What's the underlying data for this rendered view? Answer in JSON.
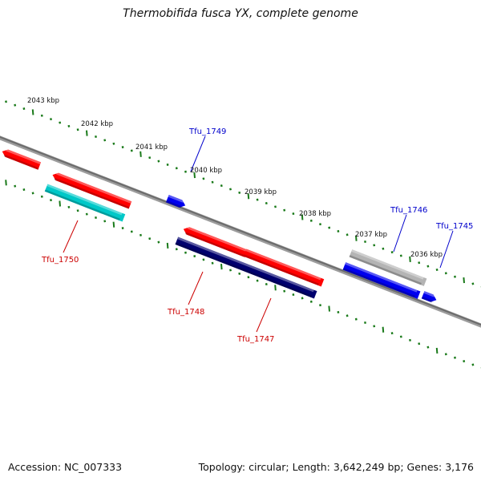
{
  "title": "Thermobifida fusca YX, complete genome",
  "footer": {
    "accession": "Accession: NC_007333",
    "summary": "Topology: circular; Length: 3,642,249 bp; Genes: 3,176"
  },
  "scale_ticks": [
    {
      "label": "2043 kbp",
      "kbp": 2043
    },
    {
      "label": "2042 kbp",
      "kbp": 2042
    },
    {
      "label": "2041 kbp",
      "kbp": 2041
    },
    {
      "label": "2040 kbp",
      "kbp": 2040
    },
    {
      "label": "2039 kbp",
      "kbp": 2039
    },
    {
      "label": "2038 kbp",
      "kbp": 2038
    },
    {
      "label": "2037 kbp",
      "kbp": 2037
    },
    {
      "label": "2036 kbp",
      "kbp": 2036
    }
  ],
  "gene_labels": [
    {
      "label": "Tfu_1749",
      "color": "#0000cc"
    },
    {
      "label": "Tfu_1746",
      "color": "#0000cc"
    },
    {
      "label": "Tfu_1745",
      "color": "#0000cc"
    },
    {
      "label": "Tfu_1750",
      "color": "#cc0000"
    },
    {
      "label": "Tfu_1748",
      "color": "#cc0000"
    },
    {
      "label": "Tfu_1747",
      "color": "#cc0000"
    }
  ],
  "colors": {
    "backbone": "#808080",
    "tick": "#1a7a1a",
    "red": "#ff0000",
    "blue": "#0000ee",
    "navy": "#00006e",
    "cyan": "#00c8c8",
    "gray": "#b4b4b4"
  }
}
